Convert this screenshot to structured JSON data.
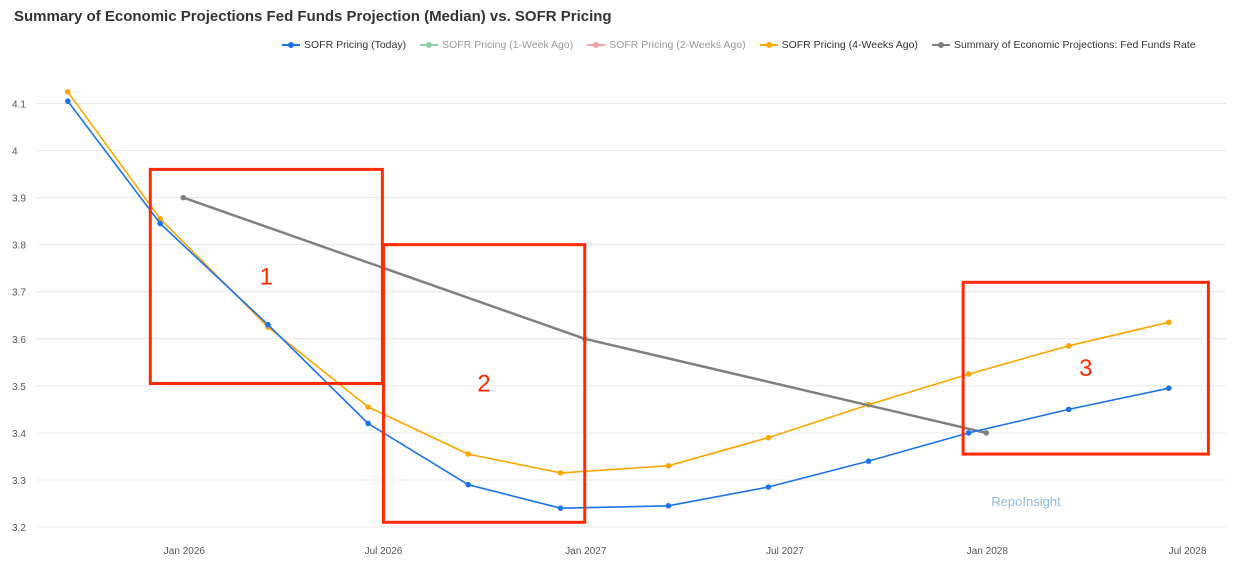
{
  "chart_data": {
    "type": "line",
    "title": "Summary of Economic Projections Fed Funds Projection (Median) vs. SOFR Pricing",
    "xlabel": "",
    "ylabel": "",
    "ylim": [
      3.2,
      4.15
    ],
    "y_ticks": [
      3.2,
      3.3,
      3.4,
      3.5,
      3.6,
      3.7,
      3.8,
      3.9,
      4,
      4.1
    ],
    "y_tick_labels": [
      "3.2",
      "3.3",
      "3.4",
      "3.5",
      "3.6",
      "3.7",
      "3.8",
      "3.9",
      "4",
      "4.1"
    ],
    "x_range": [
      "2025-08-20",
      "2028-08-05"
    ],
    "x_ticks": [
      "2026-01-01",
      "2026-07-01",
      "2027-01-01",
      "2027-07-01",
      "2028-01-01",
      "2028-07-01"
    ],
    "x_tick_labels": [
      "Jan 2026",
      "Jul 2026",
      "Jan 2027",
      "Jul 2027",
      "Jan 2028",
      "Jul 2028"
    ],
    "grid": "horizontal",
    "legend_position": "top",
    "series": [
      {
        "name": "SOFR Pricing (Today)",
        "color": "#1a73e8",
        "visible": true,
        "x": [
          "2025-09-17",
          "2025-12-10",
          "2026-03-18",
          "2026-06-17",
          "2026-09-16",
          "2026-12-09",
          "2027-03-17",
          "2027-06-16",
          "2027-09-15",
          "2027-12-15",
          "2028-03-15",
          "2028-06-14"
        ],
        "y": [
          4.105,
          3.845,
          3.63,
          3.42,
          3.29,
          3.24,
          3.245,
          3.285,
          3.34,
          3.4,
          3.45,
          3.495
        ]
      },
      {
        "name": "SOFR Pricing (1-Week Ago)",
        "color": "#8fd19e",
        "visible": false,
        "x": [],
        "y": []
      },
      {
        "name": "SOFR Pricing (2-Weeks Ago)",
        "color": "#f4a3a3",
        "visible": false,
        "x": [],
        "y": []
      },
      {
        "name": "SOFR Pricing (4-Weeks Ago)",
        "color": "#ffa500",
        "visible": true,
        "x": [
          "2025-09-17",
          "2025-12-10",
          "2026-03-18",
          "2026-06-17",
          "2026-09-16",
          "2026-12-09",
          "2027-03-17",
          "2027-06-16",
          "2027-09-15",
          "2027-12-15",
          "2028-03-15",
          "2028-06-14"
        ],
        "y": [
          4.125,
          3.855,
          3.625,
          3.455,
          3.355,
          3.315,
          3.33,
          3.39,
          3.46,
          3.525,
          3.585,
          3.635
        ]
      },
      {
        "name": "Summary of Economic Projections: Fed Funds Rate",
        "color": "#808080",
        "visible": true,
        "x": [
          "2025-12-31",
          "2026-12-31",
          "2027-12-31"
        ],
        "y": [
          3.9,
          3.6,
          3.4
        ]
      }
    ],
    "annotations": [
      {
        "label": "1",
        "color": "#ff2a00",
        "x0": "2025-12-01",
        "x1": "2026-06-30",
        "y0": 3.505,
        "y1": 3.96
      },
      {
        "label": "2",
        "color": "#ff2a00",
        "x0": "2026-07-01",
        "x1": "2026-12-31",
        "y0": 3.21,
        "y1": 3.8
      },
      {
        "label": "3",
        "color": "#ff2a00",
        "x0": "2027-12-10",
        "x1": "2028-07-20",
        "y0": 3.355,
        "y1": 3.72
      }
    ],
    "watermark": "RepoInsight"
  }
}
